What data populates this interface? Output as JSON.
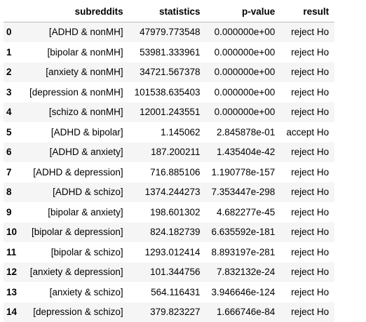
{
  "table": {
    "columns": [
      "",
      "subreddits",
      "statistics",
      "p-value",
      "result"
    ],
    "rows": [
      {
        "index": "0",
        "subreddits": "[ADHD & nonMH]",
        "statistics": "47979.773548",
        "p_value": "0.000000e+00",
        "result": "reject Ho"
      },
      {
        "index": "1",
        "subreddits": "[bipolar & nonMH]",
        "statistics": "53981.333961",
        "p_value": "0.000000e+00",
        "result": "reject Ho"
      },
      {
        "index": "2",
        "subreddits": "[anxiety & nonMH]",
        "statistics": "34721.567378",
        "p_value": "0.000000e+00",
        "result": "reject Ho"
      },
      {
        "index": "3",
        "subreddits": "[depression & nonMH]",
        "statistics": "101538.635403",
        "p_value": "0.000000e+00",
        "result": "reject Ho"
      },
      {
        "index": "4",
        "subreddits": "[schizo & nonMH]",
        "statistics": "12001.243551",
        "p_value": "0.000000e+00",
        "result": "reject Ho"
      },
      {
        "index": "5",
        "subreddits": "[ADHD & bipolar]",
        "statistics": "1.145062",
        "p_value": "2.845878e-01",
        "result": "accept Ho"
      },
      {
        "index": "6",
        "subreddits": "[ADHD & anxiety]",
        "statistics": "187.200211",
        "p_value": "1.435404e-42",
        "result": "reject Ho"
      },
      {
        "index": "7",
        "subreddits": "[ADHD & depression]",
        "statistics": "716.885106",
        "p_value": "1.190778e-157",
        "result": "reject Ho"
      },
      {
        "index": "8",
        "subreddits": "[ADHD & schizo]",
        "statistics": "1374.244273",
        "p_value": "7.353447e-298",
        "result": "reject Ho"
      },
      {
        "index": "9",
        "subreddits": "[bipolar & anxiety]",
        "statistics": "198.601302",
        "p_value": "4.682277e-45",
        "result": "reject Ho"
      },
      {
        "index": "10",
        "subreddits": "[bipolar & depression]",
        "statistics": "824.182739",
        "p_value": "6.635592e-181",
        "result": "reject Ho"
      },
      {
        "index": "11",
        "subreddits": "[bipolar & schizo]",
        "statistics": "1293.012414",
        "p_value": "8.893197e-281",
        "result": "reject Ho"
      },
      {
        "index": "12",
        "subreddits": "[anxiety & depression]",
        "statistics": "101.344756",
        "p_value": "7.832132e-24",
        "result": "reject Ho"
      },
      {
        "index": "13",
        "subreddits": "[anxiety & schizo]",
        "statistics": "564.116431",
        "p_value": "3.946646e-124",
        "result": "reject Ho"
      },
      {
        "index": "14",
        "subreddits": "[depression & schizo]",
        "statistics": "379.823227",
        "p_value": "1.666746e-84",
        "result": "reject Ho"
      }
    ]
  },
  "colors": {
    "stripe": "#f5f5f5",
    "header_rule": "#bdbdbd",
    "text": "#000000"
  }
}
